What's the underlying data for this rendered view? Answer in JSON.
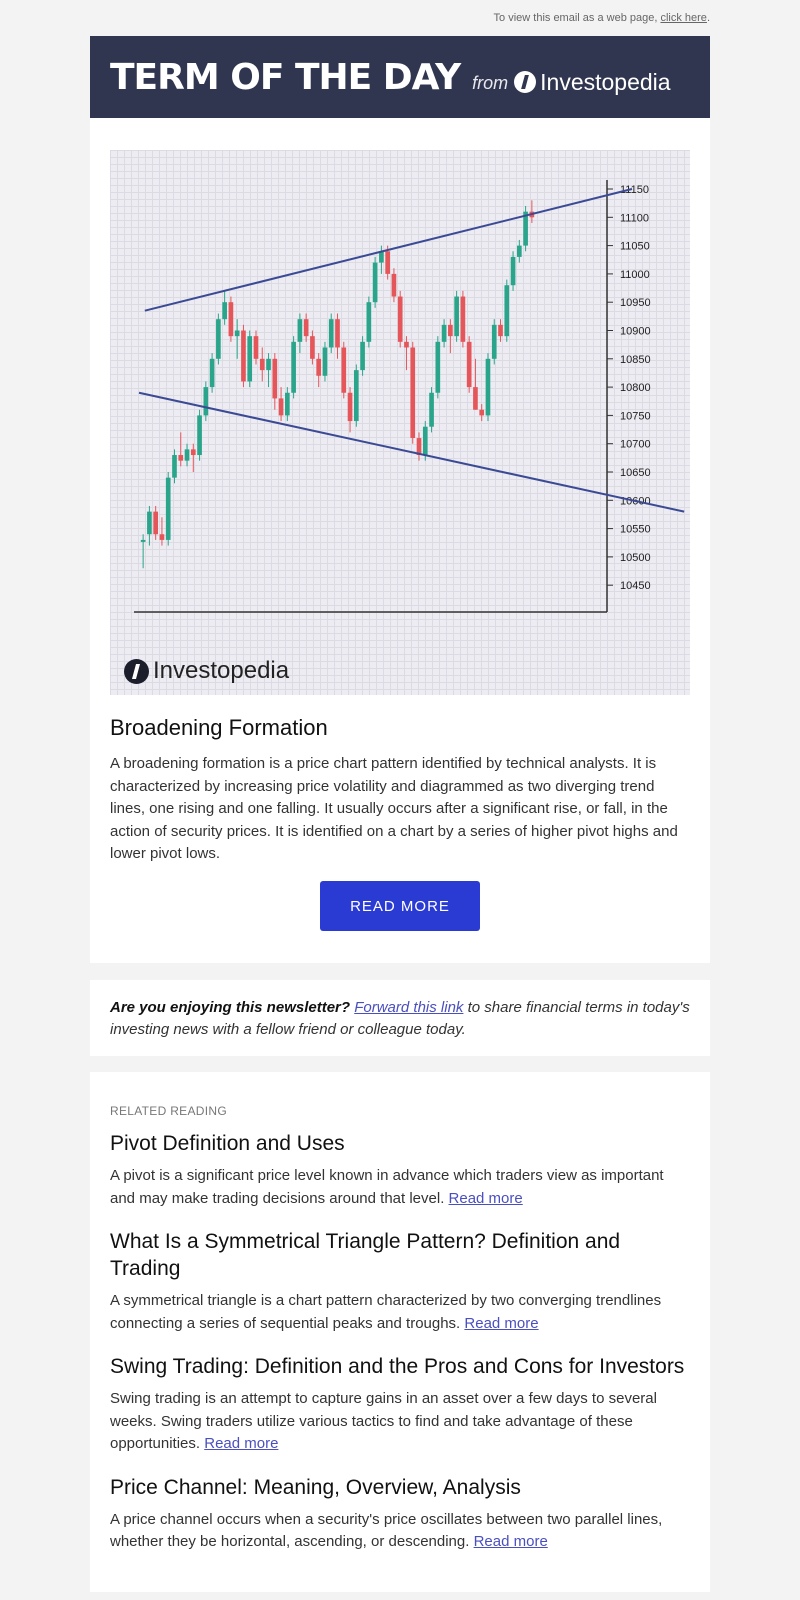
{
  "header": {
    "web_view_text": "To view this email as a web page,",
    "web_view_link": "click here",
    "web_view_tail": ".",
    "title": "TERM OF THE DAY",
    "from": "from",
    "brand": "Investopedia"
  },
  "term": {
    "title": "Broadening Formation",
    "description": "A broadening formation is a price chart pattern identified by technical analysts. It is characterized by increasing price volatility and diagrammed as two diverging trend lines, one rising and one falling. It usually occurs after a significant rise, or fall, in the action of security prices. It is identified on a chart by a series of higher pivot highs and lower pivot lows.",
    "button_label": "READ MORE",
    "chart_logo": "Investopedia"
  },
  "chart_data": {
    "type": "candlestick",
    "y_ticks": [
      "11150",
      "11100",
      "11050",
      "11000",
      "10950",
      "10900",
      "10850",
      "10800",
      "10750",
      "10700",
      "10650",
      "10600",
      "10550",
      "10500",
      "10450"
    ],
    "ylim": [
      10430,
      11180
    ],
    "candles": [
      [
        10530,
        10540,
        10480,
        10530
      ],
      [
        10540,
        10590,
        10520,
        10580
      ],
      [
        10580,
        10590,
        10530,
        10540
      ],
      [
        10540,
        10570,
        10520,
        10530
      ],
      [
        10530,
        10650,
        10520,
        10640
      ],
      [
        10640,
        10690,
        10630,
        10680
      ],
      [
        10680,
        10720,
        10660,
        10670
      ],
      [
        10670,
        10700,
        10660,
        10690
      ],
      [
        10690,
        10700,
        10650,
        10680
      ],
      [
        10680,
        10760,
        10670,
        10750
      ],
      [
        10750,
        10810,
        10740,
        10800
      ],
      [
        10800,
        10860,
        10790,
        10850
      ],
      [
        10850,
        10930,
        10840,
        10920
      ],
      [
        10920,
        10970,
        10910,
        10950
      ],
      [
        10950,
        10960,
        10880,
        10890
      ],
      [
        10890,
        10920,
        10850,
        10900
      ],
      [
        10900,
        10910,
        10800,
        10810
      ],
      [
        10810,
        10900,
        10800,
        10890
      ],
      [
        10890,
        10900,
        10840,
        10850
      ],
      [
        10850,
        10870,
        10810,
        10830
      ],
      [
        10830,
        10860,
        10800,
        10850
      ],
      [
        10850,
        10860,
        10760,
        10780
      ],
      [
        10780,
        10800,
        10740,
        10750
      ],
      [
        10750,
        10800,
        10740,
        10790
      ],
      [
        10790,
        10890,
        10780,
        10880
      ],
      [
        10880,
        10930,
        10860,
        10920
      ],
      [
        10920,
        10930,
        10880,
        10890
      ],
      [
        10890,
        10900,
        10840,
        10850
      ],
      [
        10850,
        10860,
        10800,
        10820
      ],
      [
        10820,
        10880,
        10810,
        10870
      ],
      [
        10870,
        10930,
        10860,
        10920
      ],
      [
        10920,
        10930,
        10850,
        10870
      ],
      [
        10870,
        10880,
        10780,
        10790
      ],
      [
        10790,
        10800,
        10720,
        10740
      ],
      [
        10740,
        10840,
        10730,
        10830
      ],
      [
        10830,
        10890,
        10820,
        10880
      ],
      [
        10880,
        10960,
        10870,
        10950
      ],
      [
        10950,
        11030,
        10940,
        11020
      ],
      [
        11020,
        11050,
        11000,
        11040
      ],
      [
        11040,
        11050,
        10990,
        11000
      ],
      [
        11000,
        11010,
        10950,
        10960
      ],
      [
        10960,
        10970,
        10870,
        10880
      ],
      [
        10880,
        10890,
        10830,
        10870
      ],
      [
        10870,
        10880,
        10700,
        10710
      ],
      [
        10710,
        10720,
        10670,
        10680
      ],
      [
        10680,
        10740,
        10670,
        10730
      ],
      [
        10730,
        10800,
        10720,
        10790
      ],
      [
        10790,
        10890,
        10780,
        10880
      ],
      [
        10880,
        10920,
        10870,
        10910
      ],
      [
        10910,
        10920,
        10860,
        10890
      ],
      [
        10890,
        10970,
        10880,
        10960
      ],
      [
        10960,
        10970,
        10870,
        10880
      ],
      [
        10880,
        10890,
        10790,
        10800
      ],
      [
        10800,
        10850,
        10760,
        10760
      ],
      [
        10760,
        10770,
        10740,
        10750
      ],
      [
        10750,
        10860,
        10740,
        10850
      ],
      [
        10850,
        10920,
        10840,
        10910
      ],
      [
        10910,
        10920,
        10880,
        10890
      ],
      [
        10890,
        10990,
        10880,
        10980
      ],
      [
        10980,
        11040,
        10970,
        11030
      ],
      [
        11030,
        11060,
        11020,
        11050
      ],
      [
        11050,
        11120,
        11040,
        11110
      ],
      [
        11110,
        11130,
        11090,
        11100
      ]
    ],
    "trendlines": [
      [
        [
          0.06,
          10935
        ],
        [
          0.9,
          11150
        ]
      ],
      [
        [
          0.05,
          10790
        ],
        [
          0.99,
          10580
        ]
      ]
    ]
  },
  "cta": {
    "question": "Are you enjoying this newsletter?",
    "link": "Forward this link",
    "rest": "to share financial terms in today's investing news with a fellow friend or colleague today."
  },
  "related": {
    "label": "RELATED READING",
    "items": [
      {
        "title": "Pivot Definition and Uses",
        "text": "A pivot is a significant price level known in advance which traders view as important and may make trading decisions around that level.",
        "link": "Read more"
      },
      {
        "title": "What Is a Symmetrical Triangle Pattern? Definition and Trading",
        "text": "A symmetrical triangle is a chart pattern characterized by two converging trendlines connecting a series of sequential peaks and troughs.",
        "link": "Read more"
      },
      {
        "title": "Swing Trading: Definition and the Pros and Cons for Investors",
        "text": "Swing trading is an attempt to capture gains in an asset over a few days to several weeks. Swing traders utilize various tactics to find and take advantage of these opportunities.",
        "link": "Read more"
      },
      {
        "title": "Price Channel: Meaning, Overview, Analysis",
        "text": "A price channel occurs when a security's price oscillates between two parallel lines, whether they be horizontal, ascending, or descending.",
        "link": "Read more"
      }
    ]
  },
  "colors": {
    "banner": "#313650",
    "button": "#2a3bd4",
    "up": "#2aa58b",
    "down": "#e5565a",
    "trend": "#3b4a94"
  }
}
